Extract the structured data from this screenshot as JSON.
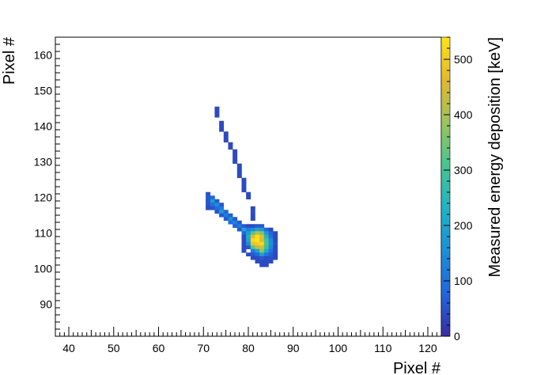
{
  "chart_data": {
    "type": "heatmap",
    "xlabel": "Pixel #",
    "ylabel": "Pixel #",
    "zlabel": "Measured energy deposition [keV]",
    "xlim": [
      37,
      123
    ],
    "ylim": [
      81,
      165
    ],
    "zlim": [
      0,
      540
    ],
    "x_ticks": [
      40,
      50,
      60,
      70,
      80,
      90,
      100,
      110,
      120
    ],
    "y_ticks": [
      90,
      100,
      110,
      120,
      130,
      140,
      150,
      160
    ],
    "z_ticks": [
      0,
      100,
      200,
      300,
      400,
      500
    ],
    "colormap": "parula",
    "colormap_stops": [
      "#3a2ca0",
      "#2166dd",
      "#1c8fd8",
      "#1fb3c4",
      "#47c492",
      "#9ac45e",
      "#e2b82e",
      "#fbe418"
    ],
    "grid": false,
    "points": [
      [
        73,
        145,
        40
      ],
      [
        73,
        144,
        40
      ],
      [
        73,
        143,
        40
      ],
      [
        74,
        141,
        40
      ],
      [
        74,
        140,
        40
      ],
      [
        74,
        139,
        40
      ],
      [
        75,
        138,
        40
      ],
      [
        75,
        137,
        40
      ],
      [
        75,
        136,
        40
      ],
      [
        76,
        135,
        40
      ],
      [
        76,
        134,
        40
      ],
      [
        77,
        133,
        40
      ],
      [
        77,
        132,
        40
      ],
      [
        77,
        131,
        40
      ],
      [
        77,
        130,
        40
      ],
      [
        78,
        129,
        40
      ],
      [
        78,
        128,
        40
      ],
      [
        78,
        127,
        40
      ],
      [
        78,
        126,
        40
      ],
      [
        79,
        125,
        40
      ],
      [
        79,
        124,
        40
      ],
      [
        79,
        123,
        40
      ],
      [
        79,
        122,
        40
      ],
      [
        80,
        121,
        40
      ],
      [
        80,
        120,
        40
      ],
      [
        81,
        117,
        40
      ],
      [
        81,
        116,
        50
      ],
      [
        81,
        115,
        40
      ],
      [
        81,
        114,
        40
      ],
      [
        71,
        121,
        50
      ],
      [
        71,
        120,
        60
      ],
      [
        71,
        119,
        50
      ],
      [
        71,
        118,
        50
      ],
      [
        71,
        117,
        40
      ],
      [
        72,
        120,
        80
      ],
      [
        72,
        119,
        180
      ],
      [
        72,
        118,
        100
      ],
      [
        72,
        117,
        50
      ],
      [
        73,
        119,
        60
      ],
      [
        73,
        118,
        150
      ],
      [
        73,
        117,
        90
      ],
      [
        73,
        116,
        50
      ],
      [
        74,
        118,
        60
      ],
      [
        74,
        117,
        110
      ],
      [
        74,
        116,
        180
      ],
      [
        74,
        115,
        60
      ],
      [
        75,
        116,
        80
      ],
      [
        75,
        115,
        120
      ],
      [
        75,
        114,
        60
      ],
      [
        76,
        115,
        70
      ],
      [
        76,
        114,
        150
      ],
      [
        76,
        113,
        90
      ],
      [
        77,
        114,
        60
      ],
      [
        77,
        113,
        130
      ],
      [
        77,
        112,
        70
      ],
      [
        78,
        113,
        60
      ],
      [
        78,
        112,
        110
      ],
      [
        78,
        111,
        60
      ],
      [
        79,
        112,
        60
      ],
      [
        79,
        111,
        200
      ],
      [
        79,
        110,
        80
      ],
      [
        79,
        109,
        40
      ],
      [
        79,
        108,
        40
      ],
      [
        79,
        107,
        40
      ],
      [
        79,
        106,
        40
      ],
      [
        79,
        105,
        40
      ],
      [
        80,
        112,
        40
      ],
      [
        80,
        111,
        120
      ],
      [
        80,
        110,
        180
      ],
      [
        80,
        109,
        220
      ],
      [
        80,
        108,
        200
      ],
      [
        80,
        107,
        150
      ],
      [
        80,
        106,
        60
      ],
      [
        80,
        104,
        40
      ],
      [
        81,
        112,
        40
      ],
      [
        81,
        111,
        150
      ],
      [
        81,
        110,
        320
      ],
      [
        81,
        109,
        470
      ],
      [
        81,
        108,
        520
      ],
      [
        81,
        107,
        480
      ],
      [
        81,
        106,
        320
      ],
      [
        81,
        105,
        120
      ],
      [
        81,
        104,
        60
      ],
      [
        81,
        103,
        40
      ],
      [
        82,
        112,
        60
      ],
      [
        82,
        111,
        200
      ],
      [
        82,
        110,
        420
      ],
      [
        82,
        109,
        530
      ],
      [
        82,
        108,
        540
      ],
      [
        82,
        107,
        500
      ],
      [
        82,
        106,
        420
      ],
      [
        82,
        105,
        200
      ],
      [
        82,
        104,
        90
      ],
      [
        82,
        103,
        40
      ],
      [
        82,
        102,
        40
      ],
      [
        83,
        112,
        60
      ],
      [
        83,
        111,
        180
      ],
      [
        83,
        110,
        360
      ],
      [
        83,
        109,
        470
      ],
      [
        83,
        108,
        460
      ],
      [
        83,
        107,
        520
      ],
      [
        83,
        106,
        460
      ],
      [
        83,
        105,
        380
      ],
      [
        83,
        104,
        200
      ],
      [
        83,
        103,
        60
      ],
      [
        83,
        102,
        40
      ],
      [
        83,
        101,
        40
      ],
      [
        84,
        111,
        80
      ],
      [
        84,
        110,
        180
      ],
      [
        84,
        109,
        250
      ],
      [
        84,
        108,
        300
      ],
      [
        84,
        107,
        310
      ],
      [
        84,
        106,
        290
      ],
      [
        84,
        105,
        220
      ],
      [
        84,
        104,
        110
      ],
      [
        84,
        103,
        40
      ],
      [
        84,
        102,
        40
      ],
      [
        84,
        101,
        40
      ],
      [
        85,
        111,
        40
      ],
      [
        85,
        110,
        80
      ],
      [
        85,
        109,
        100
      ],
      [
        85,
        108,
        150
      ],
      [
        85,
        107,
        160
      ],
      [
        85,
        106,
        140
      ],
      [
        85,
        105,
        100
      ],
      [
        85,
        104,
        70
      ],
      [
        85,
        103,
        50
      ],
      [
        85,
        102,
        40
      ],
      [
        86,
        110,
        40
      ],
      [
        86,
        109,
        40
      ],
      [
        86,
        108,
        40
      ],
      [
        86,
        107,
        50
      ],
      [
        86,
        106,
        40
      ],
      [
        86,
        105,
        40
      ],
      [
        86,
        104,
        40
      ],
      [
        86,
        103,
        40
      ]
    ]
  }
}
